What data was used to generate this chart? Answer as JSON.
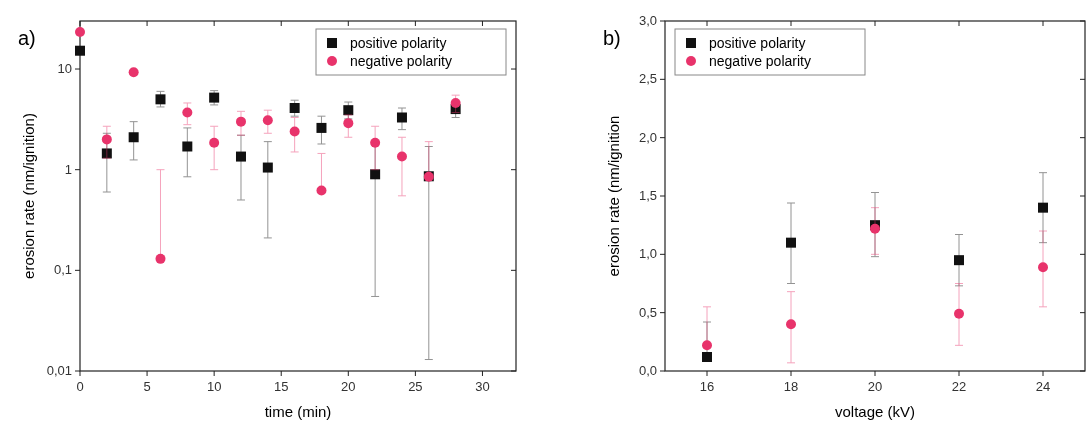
{
  "chart_data": [
    {
      "type": "scatter",
      "annotations": [
        "a)"
      ],
      "xlabel": "time (min)",
      "ylabel": "erosion rate (nm/ignition)",
      "log": "y",
      "legend": "top right",
      "grid": false,
      "xlim": [
        0,
        32.5
      ],
      "xticks": [
        0,
        5,
        10,
        15,
        20,
        25,
        30
      ],
      "ylim": [
        0.01,
        30
      ],
      "yticks": [
        {
          "value": 0.01,
          "label": "0,01"
        },
        {
          "value": 0.1,
          "label": "0,1"
        },
        {
          "value": 1,
          "label": "1"
        },
        {
          "value": 10,
          "label": "10"
        }
      ],
      "x": [
        0,
        2,
        4,
        6,
        8,
        10,
        12,
        14,
        16,
        18,
        20,
        22,
        24,
        26,
        28
      ],
      "series": [
        {
          "name": "positive polarity",
          "color": "#111111",
          "marker": "square",
          "values": [
            15.2,
            1.45,
            2.1,
            5.0,
            1.7,
            5.2,
            1.35,
            1.05,
            4.1,
            2.6,
            3.9,
            0.9,
            3.3,
            0.86,
            4.0
          ],
          "errors": [
            null,
            [
              0.6,
              2.3
            ],
            [
              1.25,
              3.0
            ],
            [
              4.2,
              6.0
            ],
            [
              0.85,
              2.6
            ],
            [
              4.4,
              6.1
            ],
            [
              0.5,
              2.2
            ],
            [
              0.21,
              1.9
            ],
            [
              3.4,
              4.9
            ],
            [
              1.8,
              3.4
            ],
            [
              3.2,
              4.7
            ],
            [
              0.055,
              1.75
            ],
            [
              2.5,
              4.1
            ],
            [
              0.013,
              1.7
            ],
            [
              3.3,
              4.7
            ]
          ]
        },
        {
          "name": "negative polarity",
          "color": "#e8336b",
          "marker": "circle",
          "values": [
            23.3,
            2.0,
            9.3,
            0.13,
            3.7,
            1.85,
            3.0,
            3.1,
            2.4,
            0.62,
            2.9,
            1.85,
            1.35,
            0.85,
            4.6
          ],
          "errors": [
            null,
            [
              1.3,
              2.7
            ],
            null,
            [
              0.13,
              1.0
            ],
            [
              2.8,
              4.6
            ],
            [
              1.0,
              2.7
            ],
            [
              2.2,
              3.8
            ],
            [
              2.3,
              3.9
            ],
            [
              1.5,
              3.3
            ],
            [
              0.62,
              1.45
            ],
            [
              2.1,
              3.5
            ],
            [
              1.0,
              2.7
            ],
            [
              0.55,
              2.1
            ],
            [
              0.85,
              1.9
            ],
            [
              3.7,
              5.5
            ]
          ]
        }
      ]
    },
    {
      "type": "scatter",
      "annotations": [
        "b)"
      ],
      "xlabel": "voltage (kV)",
      "ylabel": "erosion rate (nm/ignition",
      "legend": "top left",
      "grid": false,
      "xlim": [
        15,
        25
      ],
      "xticks": [
        16,
        18,
        20,
        22,
        24
      ],
      "ylim": [
        0,
        3
      ],
      "yticks": [
        {
          "value": 0,
          "label": "0,0"
        },
        {
          "value": 0.5,
          "label": "0,5"
        },
        {
          "value": 1,
          "label": "1,0"
        },
        {
          "value": 1.5,
          "label": "1,5"
        },
        {
          "value": 2,
          "label": "2,0"
        },
        {
          "value": 2.5,
          "label": "2,5"
        },
        {
          "value": 3,
          "label": "3,0"
        }
      ],
      "x": [
        16,
        18,
        20,
        22,
        24
      ],
      "series": [
        {
          "name": "positive polarity",
          "color": "#111111",
          "marker": "square",
          "values": [
            0.12,
            1.1,
            1.25,
            0.95,
            1.4
          ],
          "errors": [
            [
              0.12,
              0.42
            ],
            [
              0.75,
              1.44
            ],
            [
              0.98,
              1.53
            ],
            [
              0.73,
              1.17
            ],
            [
              1.1,
              1.7
            ]
          ]
        },
        {
          "name": "negative polarity",
          "color": "#e8336b",
          "marker": "circle",
          "values": [
            0.22,
            0.4,
            1.22,
            0.49,
            0.89
          ],
          "errors": [
            [
              0.22,
              0.55
            ],
            [
              0.07,
              0.68
            ],
            [
              1.0,
              1.4
            ],
            [
              0.22,
              0.75
            ],
            [
              0.55,
              1.2
            ]
          ]
        }
      ]
    }
  ]
}
